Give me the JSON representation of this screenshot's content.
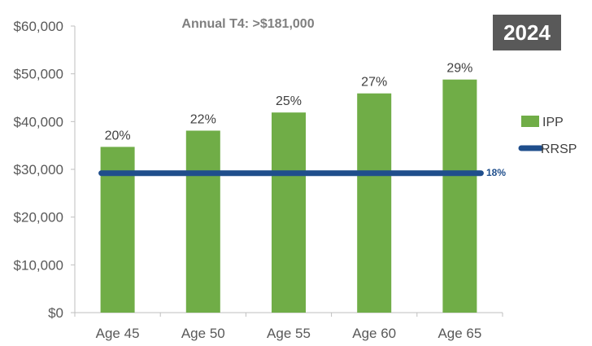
{
  "chart_data": {
    "type": "bar",
    "subtitle": "Annual T4: >$181,000",
    "year": "2024",
    "categories": [
      "Age 45",
      "Age 50",
      "Age 55",
      "Age 60",
      "Age 65"
    ],
    "ylim": [
      0,
      60000
    ],
    "yticks": [
      "$0",
      "$10,000",
      "$20,000",
      "$30,000",
      "$40,000",
      "$50,000",
      "$60,000"
    ],
    "series": [
      {
        "name": "IPP",
        "type": "bar",
        "values": [
          34700,
          38100,
          41900,
          45900,
          48800
        ],
        "labels": [
          "20%",
          "22%",
          "25%",
          "27%",
          "29%"
        ],
        "color": "#70ad47"
      },
      {
        "name": "RRSP",
        "type": "line",
        "values": [
          29200,
          29200,
          29200,
          29200,
          29200
        ],
        "label": "18%",
        "color": "#1f4e8c"
      }
    ],
    "legend": "right",
    "grid": false
  }
}
